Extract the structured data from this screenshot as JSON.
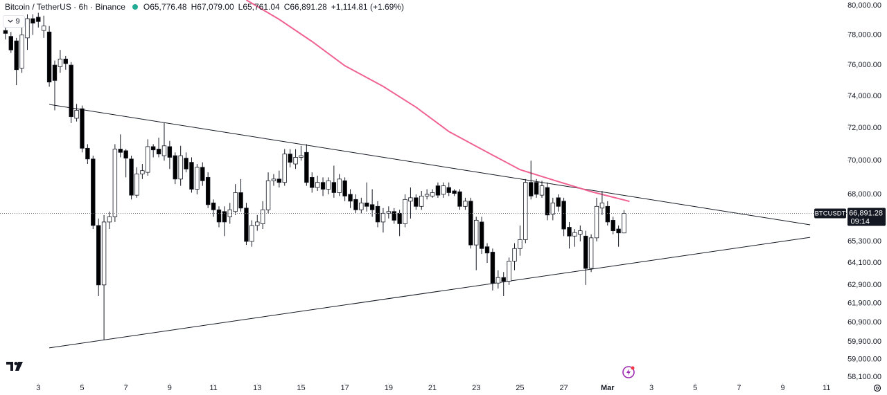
{
  "chart_data": {
    "type": "candlestick",
    "title": "Bitcoin / TetherUS · 6h · Binance",
    "legend": {
      "open": "O65,776.48",
      "high": "H67,079.00",
      "low": "L65,761.04",
      "close": "C66,891.28",
      "change": "+1,114.81 (+1.69%)"
    },
    "indicator_count": "9",
    "symbol": "BTCUSDT",
    "last_price_label": "66,891.28",
    "countdown": "09:14",
    "log_scale": true,
    "up_color": "#ffffff",
    "down_color": "#000000",
    "ma": {
      "color": "#f06292",
      "x": [
        44,
        50,
        56,
        62,
        69,
        75,
        81,
        88,
        94,
        100,
        107,
        114
      ],
      "values": [
        80380,
        79050,
        77560,
        75960,
        74620,
        73300,
        71780,
        70510,
        69460,
        68850,
        68160,
        67590
      ]
    },
    "trendlines": [
      {
        "color": "#131722",
        "x": [
          8,
          147
        ],
        "values": [
          73470,
          66240
        ]
      },
      {
        "color": "#131722",
        "x": [
          8,
          147
        ],
        "values": [
          59580,
          65530
        ]
      }
    ],
    "x": [
      0,
      1,
      2,
      3,
      4,
      5,
      6,
      7,
      8,
      9,
      10,
      11,
      12,
      13,
      14,
      15,
      16,
      17,
      18,
      19,
      20,
      21,
      22,
      23,
      24,
      25,
      26,
      27,
      28,
      29,
      30,
      31,
      32,
      33,
      34,
      35,
      36,
      37,
      38,
      39,
      40,
      41,
      42,
      43,
      44,
      45,
      46,
      47,
      48,
      49,
      50,
      51,
      52,
      53,
      54,
      55,
      56,
      57,
      58,
      59,
      60,
      61,
      62,
      63,
      64,
      65,
      66,
      67,
      68,
      69,
      70,
      71,
      72,
      73,
      74,
      75,
      76,
      77,
      78,
      79,
      80,
      81,
      82,
      83,
      84,
      85,
      86,
      87,
      88,
      89,
      90,
      91,
      92,
      93,
      94,
      95,
      96,
      97,
      98,
      99,
      100,
      101,
      102,
      103,
      104,
      105,
      106,
      107,
      108,
      109,
      110,
      111,
      112,
      113
    ],
    "ohlc": [
      [
        78300,
        78900,
        77700,
        78100
      ],
      [
        77900,
        78200,
        76800,
        77000
      ],
      [
        77600,
        77800,
        74700,
        75700
      ],
      [
        75800,
        78500,
        75500,
        78000
      ],
      [
        77800,
        79400,
        77000,
        79100
      ],
      [
        79100,
        79400,
        78000,
        78800
      ],
      [
        79200,
        79500,
        78500,
        78900
      ],
      [
        78300,
        79300,
        77800,
        78600
      ],
      [
        78200,
        78600,
        74600,
        74900
      ],
      [
        76000,
        76300,
        73100,
        75000
      ],
      [
        75900,
        77000,
        75500,
        76400
      ],
      [
        76400,
        76600,
        75700,
        76100
      ],
      [
        76000,
        76200,
        72300,
        72700
      ],
      [
        72600,
        73500,
        72400,
        73100
      ],
      [
        73200,
        73400,
        70500,
        70750
      ],
      [
        70750,
        71000,
        69800,
        70100
      ],
      [
        70100,
        70300,
        66000,
        66200
      ],
      [
        66200,
        66600,
        62300,
        62900
      ],
      [
        62900,
        66800,
        60000,
        66400
      ],
      [
        66400,
        67000,
        66000,
        66700
      ],
      [
        66700,
        71000,
        66400,
        70700
      ],
      [
        70700,
        71600,
        70200,
        70500
      ],
      [
        70600,
        70700,
        69000,
        70150
      ],
      [
        70100,
        70300,
        67700,
        67950
      ],
      [
        67950,
        69600,
        67800,
        69200
      ],
      [
        69200,
        69800,
        68900,
        69400
      ],
      [
        69300,
        71300,
        69100,
        70850
      ],
      [
        70850,
        71000,
        70200,
        70650
      ],
      [
        70700,
        71400,
        70200,
        70400
      ],
      [
        70300,
        72300,
        70000,
        70900
      ],
      [
        70850,
        71200,
        69500,
        70200
      ],
      [
        70300,
        70500,
        68600,
        68900
      ],
      [
        68900,
        70900,
        68500,
        70300
      ],
      [
        70150,
        70500,
        69300,
        69500
      ],
      [
        69900,
        70200,
        68100,
        68300
      ],
      [
        68300,
        69800,
        68000,
        69600
      ],
      [
        69600,
        69900,
        68500,
        68800
      ],
      [
        69000,
        69300,
        67200,
        67400
      ],
      [
        67500,
        67700,
        66700,
        67100
      ],
      [
        67100,
        67300,
        66100,
        66400
      ],
      [
        67000,
        67300,
        65600,
        66400
      ],
      [
        66700,
        67500,
        66300,
        67100
      ],
      [
        67000,
        68600,
        66800,
        68100
      ],
      [
        68100,
        68900,
        67000,
        67200
      ],
      [
        67200,
        67500,
        65100,
        65300
      ],
      [
        65300,
        66500,
        65000,
        66200
      ],
      [
        66200,
        66800,
        65900,
        66400
      ],
      [
        66300,
        67600,
        66000,
        67100
      ],
      [
        67100,
        69300,
        66900,
        68800
      ],
      [
        68800,
        69200,
        68500,
        68900
      ],
      [
        68900,
        69400,
        68400,
        68700
      ],
      [
        68700,
        70700,
        68500,
        70400
      ],
      [
        70400,
        70700,
        69600,
        69900
      ],
      [
        69800,
        70700,
        69500,
        70200
      ],
      [
        70200,
        70900,
        70000,
        70300
      ],
      [
        70500,
        71000,
        68500,
        68700
      ],
      [
        69000,
        69300,
        68100,
        68400
      ],
      [
        68400,
        69100,
        68200,
        68700
      ],
      [
        68700,
        69000,
        67900,
        68300
      ],
      [
        68300,
        69000,
        68000,
        68800
      ],
      [
        68700,
        69700,
        67800,
        68100
      ],
      [
        68100,
        69200,
        67900,
        68900
      ],
      [
        68800,
        69000,
        67600,
        67900
      ],
      [
        68000,
        68300,
        67200,
        67600
      ],
      [
        67700,
        68000,
        66900,
        67100
      ],
      [
        67100,
        67800,
        66900,
        67500
      ],
      [
        67500,
        68700,
        67000,
        67300
      ],
      [
        67400,
        68300,
        66700,
        67100
      ],
      [
        67300,
        67600,
        66100,
        66400
      ],
      [
        66400,
        67200,
        65800,
        66900
      ],
      [
        66900,
        67300,
        66600,
        67000
      ],
      [
        67000,
        67200,
        66300,
        66500
      ],
      [
        66900,
        67100,
        65600,
        66300
      ],
      [
        66300,
        68000,
        66100,
        67700
      ],
      [
        67600,
        68400,
        66600,
        67800
      ],
      [
        67800,
        68000,
        67100,
        67300
      ],
      [
        67300,
        68200,
        67100,
        67900
      ],
      [
        67900,
        68300,
        67700,
        68000
      ],
      [
        67900,
        68300,
        67800,
        68100
      ],
      [
        68500,
        68700,
        67800,
        67950
      ],
      [
        68000,
        68700,
        67800,
        68500
      ],
      [
        68400,
        68700,
        67900,
        68100
      ],
      [
        68200,
        68300,
        67900,
        68050
      ],
      [
        68150,
        68300,
        67100,
        67300
      ],
      [
        67300,
        67800,
        67100,
        67600
      ],
      [
        67600,
        67800,
        64900,
        65100
      ],
      [
        65100,
        66700,
        63700,
        66500
      ],
      [
        66400,
        66700,
        64600,
        64900
      ],
      [
        65000,
        65200,
        64100,
        64650
      ],
      [
        64700,
        64900,
        62600,
        63000
      ],
      [
        63000,
        63700,
        62700,
        63300
      ],
      [
        63300,
        63600,
        62300,
        63100
      ],
      [
        63100,
        64400,
        62900,
        64200
      ],
      [
        64200,
        65200,
        63700,
        64900
      ],
      [
        64900,
        66200,
        64500,
        65400
      ],
      [
        65400,
        68900,
        65200,
        68700
      ],
      [
        68700,
        70000,
        67700,
        67900
      ],
      [
        68700,
        68900,
        67800,
        68000
      ],
      [
        67950,
        68800,
        67800,
        68500
      ],
      [
        68400,
        68700,
        66500,
        66800
      ],
      [
        66850,
        67800,
        66500,
        67500
      ],
      [
        67800,
        68000,
        67000,
        67300
      ],
      [
        67600,
        67800,
        65600,
        66000
      ],
      [
        66100,
        66400,
        64900,
        65600
      ],
      [
        65600,
        66000,
        65000,
        65800
      ],
      [
        65700,
        66200,
        65300,
        65900
      ],
      [
        65600,
        65900,
        62900,
        63800
      ],
      [
        63800,
        65700,
        63600,
        65500
      ],
      [
        65500,
        67800,
        65300,
        67300
      ],
      [
        67200,
        68200,
        66800,
        67500
      ],
      [
        67300,
        67600,
        66200,
        66400
      ],
      [
        66500,
        66700,
        65700,
        65900
      ],
      [
        66000,
        66200,
        65000,
        65776.47
      ],
      [
        65776.48,
        67079,
        65761.04,
        66891.28
      ]
    ],
    "xlim": [
      -1,
      153.7
    ],
    "xticks": [
      {
        "value": 6,
        "label": "3"
      },
      {
        "value": 14,
        "label": "5"
      },
      {
        "value": 22,
        "label": "7"
      },
      {
        "value": 30,
        "label": "9"
      },
      {
        "value": 38,
        "label": "11"
      },
      {
        "value": 46,
        "label": "13"
      },
      {
        "value": 54,
        "label": "15"
      },
      {
        "value": 62,
        "label": "17"
      },
      {
        "value": 70,
        "label": "19"
      },
      {
        "value": 78,
        "label": "21"
      },
      {
        "value": 86,
        "label": "23"
      },
      {
        "value": 94,
        "label": "25"
      },
      {
        "value": 102,
        "label": "27"
      },
      {
        "value": 110,
        "label": "Mar"
      },
      {
        "value": 118,
        "label": "3"
      },
      {
        "value": 126,
        "label": "5"
      },
      {
        "value": 134,
        "label": "7"
      },
      {
        "value": 142,
        "label": "9"
      },
      {
        "value": 150,
        "label": "11"
      }
    ],
    "ylim": [
      57830,
      80380
    ],
    "yticks": [
      {
        "value": 80000,
        "label": "80,000.00"
      },
      {
        "value": 78000,
        "label": "78,000.00"
      },
      {
        "value": 76000,
        "label": "76,000.00"
      },
      {
        "value": 74000,
        "label": "74,000.00"
      },
      {
        "value": 72000,
        "label": "72,000.00"
      },
      {
        "value": 70000,
        "label": "70,000.00"
      },
      {
        "value": 68000,
        "label": "68,000.00"
      },
      {
        "value": 65300,
        "label": "65,300.00"
      },
      {
        "value": 64100,
        "label": "64,100.00"
      },
      {
        "value": 62900,
        "label": "62,900.00"
      },
      {
        "value": 61900,
        "label": "61,900.00"
      },
      {
        "value": 60900,
        "label": "60,900.00"
      },
      {
        "value": 59900,
        "label": "59,900.00"
      },
      {
        "value": 59000,
        "label": "59,000.00"
      },
      {
        "value": 58100,
        "label": "58,100.00"
      }
    ],
    "grid": false
  }
}
